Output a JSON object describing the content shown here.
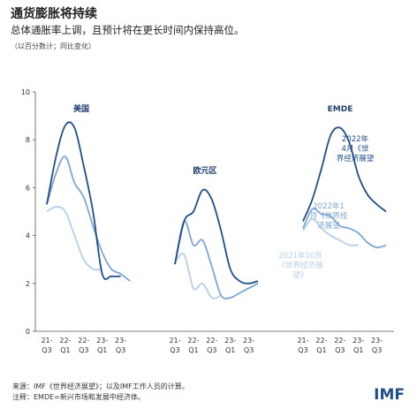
{
  "header": {
    "title": "通货膨胀将持续",
    "subtitle": "总体通胀率上调，且预计将在更长时间内保持高位。",
    "note": "（以百分数计；同比变化）"
  },
  "chart_data": [
    {
      "type": "line",
      "title": "美国",
      "categories": [
        "21-Q3",
        null,
        "22-Q1",
        null,
        "22-Q3",
        null,
        "23-Q1",
        null,
        "23-Q3",
        null
      ],
      "ylim": [
        0,
        10
      ],
      "yticks": [
        0,
        2,
        4,
        6,
        8,
        10
      ],
      "series": [
        {
          "color": "#1f4e8c",
          "values": [
            5.3,
            7.3,
            8.6,
            8.5,
            6.9,
            5.0,
            2.4,
            2.3,
            2.3,
            null
          ]
        },
        {
          "color": "#7ea6d4",
          "values": [
            5.3,
            6.6,
            7.3,
            6.2,
            5.6,
            4.4,
            3.3,
            2.6,
            2.4,
            2.1
          ]
        },
        {
          "color": "#b6cfe8",
          "values": [
            5.0,
            5.2,
            5.0,
            4.0,
            3.0,
            2.6,
            2.6,
            null,
            null,
            null
          ]
        }
      ]
    },
    {
      "type": "line",
      "title": "欧元区",
      "categories": [
        "21-Q3",
        null,
        "22-Q1",
        null,
        "22-Q3",
        null,
        "23-Q1",
        null,
        "23-Q3",
        null
      ],
      "series": [
        {
          "color": "#1f4e8c",
          "values": [
            2.8,
            4.6,
            5.0,
            5.9,
            5.5,
            4.2,
            2.6,
            2.1,
            2.0,
            2.1
          ]
        },
        {
          "color": "#7ea6d4",
          "values": [
            2.8,
            4.6,
            3.6,
            3.8,
            2.7,
            1.5,
            1.4,
            1.6,
            1.8,
            2.0
          ]
        },
        {
          "color": "#b6cfe8",
          "values": [
            2.9,
            3.2,
            1.8,
            2.0,
            1.4,
            1.5,
            null,
            null,
            null,
            null
          ]
        }
      ]
    },
    {
      "type": "line",
      "title": "EMDE",
      "categories": [
        "21-Q3",
        null,
        "22-Q1",
        null,
        "22-Q3",
        null,
        "23-Q1",
        null,
        "23-Q3",
        null
      ],
      "series": [
        {
          "name": "2022年4月《世界经济展望》",
          "color": "#1f4e8c",
          "values": [
            4.6,
            5.5,
            6.8,
            8.2,
            8.5,
            7.9,
            6.5,
            5.7,
            5.3,
            5.0
          ]
        },
        {
          "name": "2022年1月《世界经济展望》",
          "color": "#7ea6d4",
          "values": [
            4.3,
            5.1,
            4.9,
            4.8,
            4.4,
            4.3,
            4.1,
            3.7,
            3.5,
            3.6
          ]
        },
        {
          "name": "2021年10月《世界经济展望》",
          "color": "#b6cfe8",
          "values": [
            4.2,
            4.7,
            4.3,
            4.0,
            3.8,
            3.6,
            3.6,
            null,
            null,
            null
          ]
        }
      ]
    }
  ],
  "footer": {
    "source": "来源：IMF《世界经济展望》；以及IMF工作人员的计算。",
    "note": "注释：EMDE=新兴市场和发展中经济体。",
    "logo": "IMF"
  }
}
